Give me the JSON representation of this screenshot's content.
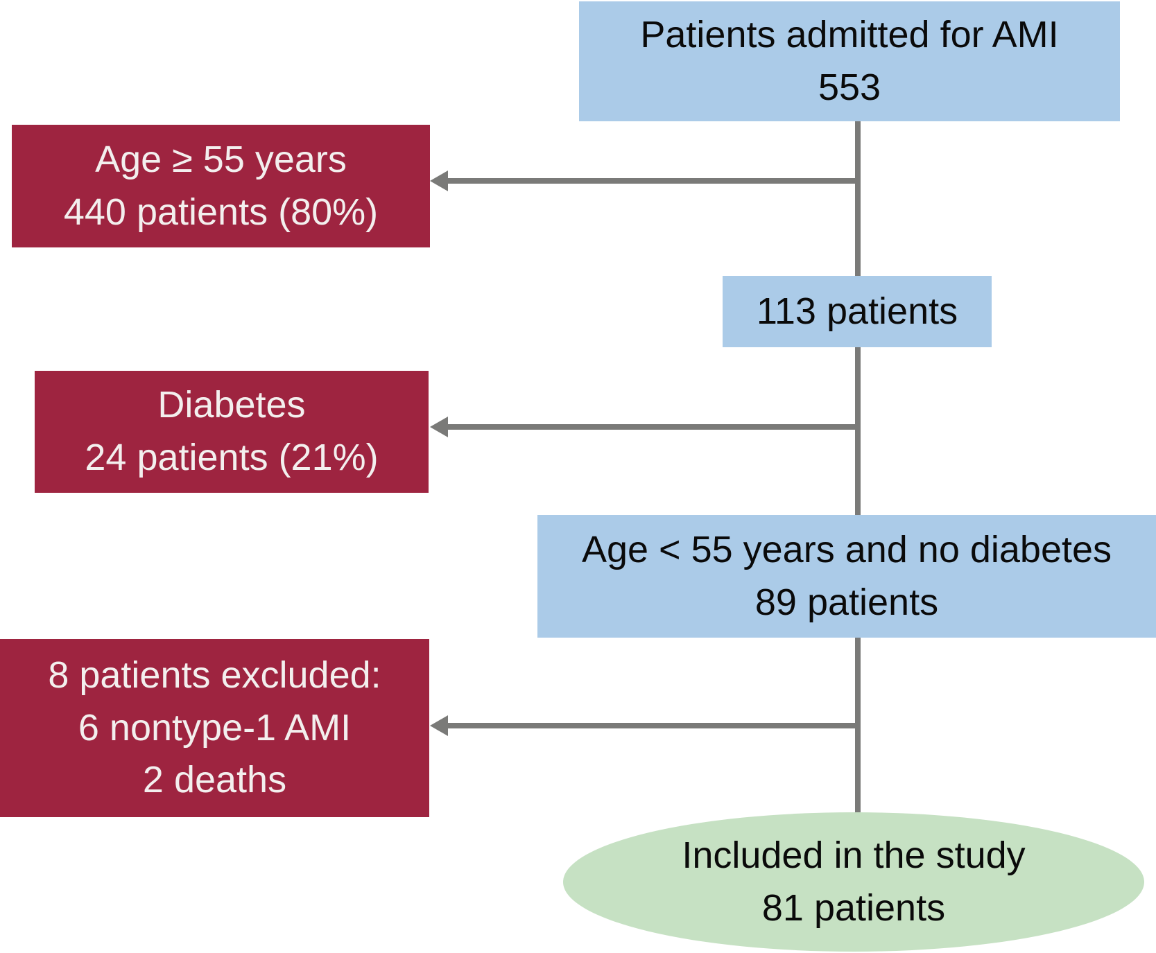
{
  "colors": {
    "box_blue": "#abcbe8",
    "box_red": "#9e2440",
    "ellipse_green": "#c6e1c3",
    "arrow_gray": "#7a7a78",
    "text_dark": "#0a0a0a",
    "text_light": "#f3efee"
  },
  "nodes": {
    "admitted": {
      "line1": "Patients admitted for AMI",
      "line2": "553"
    },
    "age_excluded": {
      "line1": "Age ≥ 55 years",
      "line2": "440 patients (80%)"
    },
    "after_age": {
      "line1": "113 patients"
    },
    "diabetes_excluded": {
      "line1": "Diabetes",
      "line2": "24 patients (21%)"
    },
    "eligible": {
      "line1": "Age < 55 years and no diabetes",
      "line2": "89 patients"
    },
    "other_excluded": {
      "line1": "8 patients excluded:",
      "line2": "6 nontype-1 AMI",
      "line3": "2 deaths"
    },
    "included": {
      "line1": "Included in the study",
      "line2": "81 patients"
    }
  }
}
